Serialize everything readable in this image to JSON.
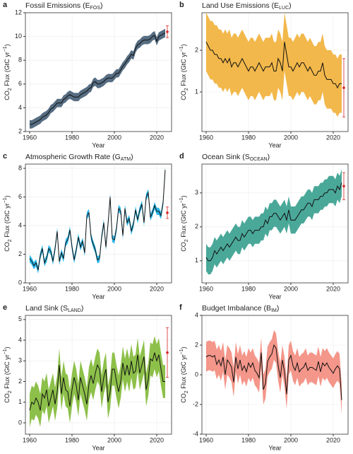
{
  "chart_data": [
    {
      "type": "line",
      "panel_label": "a",
      "title_parts": [
        "Fossil Emissions (E",
        "FOS",
        ")"
      ],
      "xlabel": "Year",
      "ylabel_parts": [
        "CO",
        "2",
        " Flux (GtC yr",
        "−1",
        ")"
      ],
      "xlim": [
        1958,
        2027
      ],
      "xticks": [
        1960,
        1980,
        2000,
        2020
      ],
      "ylim": [
        2,
        12
      ],
      "yticks": [
        2,
        4,
        6,
        8,
        10,
        12
      ],
      "x": [
        1960,
        1961,
        1962,
        1963,
        1964,
        1965,
        1966,
        1967,
        1968,
        1969,
        1970,
        1971,
        1972,
        1973,
        1974,
        1975,
        1976,
        1977,
        1978,
        1979,
        1980,
        1981,
        1982,
        1983,
        1984,
        1985,
        1986,
        1987,
        1988,
        1989,
        1990,
        1991,
        1992,
        1993,
        1994,
        1995,
        1996,
        1997,
        1998,
        1999,
        2000,
        2001,
        2002,
        2003,
        2004,
        2005,
        2006,
        2007,
        2008,
        2009,
        2010,
        2011,
        2012,
        2013,
        2014,
        2015,
        2016,
        2017,
        2018,
        2019,
        2020,
        2021,
        2022,
        2023,
        2024
      ],
      "series": [
        {
          "color": "#566d82",
          "line_color": "#111111",
          "uncertainty": 0.35,
          "values": [
            2.6,
            2.6,
            2.7,
            2.8,
            2.9,
            3.0,
            3.2,
            3.3,
            3.4,
            3.6,
            3.9,
            4.0,
            4.2,
            4.4,
            4.4,
            4.4,
            4.7,
            4.8,
            5.0,
            5.1,
            5.0,
            4.9,
            4.9,
            4.9,
            5.1,
            5.2,
            5.3,
            5.4,
            5.6,
            5.7,
            6.1,
            6.2,
            6.0,
            6.0,
            6.1,
            6.2,
            6.4,
            6.5,
            6.5,
            6.5,
            6.7,
            6.9,
            6.9,
            7.2,
            7.5,
            7.7,
            8.0,
            8.2,
            8.5,
            8.4,
            9.0,
            9.3,
            9.4,
            9.6,
            9.7,
            9.7,
            9.7,
            9.8,
            10.0,
            10.1,
            9.6,
            10.0,
            10.1,
            10.2,
            10.3
          ]
        }
      ],
      "estimate": {
        "x": 2025,
        "value": 10.4,
        "error": 0.5,
        "color": "#d62728"
      }
    },
    {
      "type": "line",
      "panel_label": "b",
      "title_parts": [
        "Land Use Emissions (E",
        "LUC",
        ")"
      ],
      "xlabel": "Year",
      "ylabel_parts": [
        "CO",
        "2",
        " Flux (GtC yr",
        "−1",
        ")"
      ],
      "xlim": [
        1958,
        2027
      ],
      "xticks": [
        1960,
        1980,
        2000,
        2020
      ],
      "ylim": [
        0.05,
        2.9
      ],
      "yticks": [
        1,
        2
      ],
      "x": [
        1960,
        1961,
        1962,
        1963,
        1964,
        1965,
        1966,
        1967,
        1968,
        1969,
        1970,
        1971,
        1972,
        1973,
        1974,
        1975,
        1976,
        1977,
        1978,
        1979,
        1980,
        1981,
        1982,
        1983,
        1984,
        1985,
        1986,
        1987,
        1988,
        1989,
        1990,
        1991,
        1992,
        1993,
        1994,
        1995,
        1996,
        1997,
        1998,
        1999,
        2000,
        2001,
        2002,
        2003,
        2004,
        2005,
        2006,
        2007,
        2008,
        2009,
        2010,
        2011,
        2012,
        2013,
        2014,
        2015,
        2016,
        2017,
        2018,
        2019,
        2020,
        2021,
        2022,
        2023,
        2024
      ],
      "series": [
        {
          "color": "#f2b84b",
          "line_color": "#111111",
          "uncertainty": 0.7,
          "values": [
            2.2,
            2.1,
            2.0,
            2.0,
            1.9,
            1.9,
            1.8,
            1.8,
            1.7,
            1.8,
            1.7,
            1.8,
            1.6,
            1.7,
            1.7,
            1.6,
            1.7,
            1.8,
            1.7,
            1.6,
            1.5,
            1.6,
            1.6,
            1.5,
            1.6,
            1.7,
            1.6,
            1.5,
            1.6,
            1.6,
            1.6,
            1.7,
            1.5,
            1.5,
            1.8,
            1.7,
            1.5,
            2.2,
            1.9,
            1.6,
            1.6,
            1.5,
            1.6,
            1.7,
            1.6,
            1.7,
            1.7,
            1.6,
            1.5,
            1.6,
            1.5,
            1.4,
            1.4,
            1.5,
            1.5,
            1.7,
            1.4,
            1.3,
            1.3,
            1.3,
            1.2,
            1.2,
            1.1,
            1.2,
            1.2
          ]
        }
      ],
      "estimate": {
        "x": 2025,
        "value": 1.1,
        "error": 0.7,
        "color": "#d62728"
      }
    },
    {
      "type": "line",
      "panel_label": "c",
      "title_parts": [
        "Atmospheric Growth Rate (G",
        "ATM",
        ")"
      ],
      "xlabel": "Year",
      "ylabel_parts": [
        "CO",
        "2",
        " Flux (GtC yr",
        "−1",
        ")"
      ],
      "xlim": [
        1958,
        2027
      ],
      "xticks": [
        1960,
        1980,
        2000,
        2020
      ],
      "ylim": [
        0,
        8.3
      ],
      "yticks": [
        0,
        2,
        4,
        6,
        8
      ],
      "x": [
        1960,
        1961,
        1962,
        1963,
        1964,
        1965,
        1966,
        1967,
        1968,
        1969,
        1970,
        1971,
        1972,
        1973,
        1974,
        1975,
        1976,
        1977,
        1978,
        1979,
        1980,
        1981,
        1982,
        1983,
        1984,
        1985,
        1986,
        1987,
        1988,
        1989,
        1990,
        1991,
        1992,
        1993,
        1994,
        1995,
        1996,
        1997,
        1998,
        1999,
        2000,
        2001,
        2002,
        2003,
        2004,
        2005,
        2006,
        2007,
        2008,
        2009,
        2010,
        2011,
        2012,
        2013,
        2014,
        2015,
        2016,
        2017,
        2018,
        2019,
        2020,
        2021,
        2022,
        2023,
        2024
      ],
      "series": [
        {
          "color": "#29b6e8",
          "line_color": "#111111",
          "uncertainty": 0.25,
          "values": [
            1.7,
            1.5,
            1.2,
            1.4,
            0.9,
            1.9,
            2.4,
            1.4,
            1.7,
            2.4,
            2.2,
            1.5,
            2.4,
            3.6,
            1.5,
            2.1,
            1.7,
            2.8,
            3.0,
            3.7,
            2.5,
            1.6,
            2.3,
            3.2,
            2.5,
            2.9,
            2.1,
            4.7,
            4.9,
            3.2,
            2.7,
            2.3,
            1.6,
            1.7,
            3.2,
            4.2,
            2.5,
            4.1,
            6.0,
            3.1,
            3.0,
            3.8,
            5.2,
            5.0,
            3.3,
            5.2,
            4.2,
            4.5,
            3.6,
            4.1,
            5.1,
            4.4,
            5.1,
            5.5,
            4.2,
            6.0,
            6.3,
            4.6,
            4.9,
            5.4,
            5.0,
            5.0,
            4.7,
            5.6,
            7.9
          ]
        }
      ],
      "estimate": {
        "x": 2025,
        "value": 4.9,
        "error": 0.4,
        "color": "#d62728"
      }
    },
    {
      "type": "line",
      "panel_label": "d",
      "title_parts": [
        "Ocean Sink (S",
        "OCEAN",
        ")"
      ],
      "xlabel": "Year",
      "ylabel_parts": [
        "CO",
        "2",
        " Flux (GtC yr",
        "−1",
        ")"
      ],
      "xlim": [
        1958,
        2027
      ],
      "xticks": [
        1960,
        1980,
        2000,
        2020
      ],
      "ylim": [
        0.35,
        3.85
      ],
      "yticks": [
        1,
        2,
        3
      ],
      "x": [
        1960,
        1961,
        1962,
        1963,
        1964,
        1965,
        1966,
        1967,
        1968,
        1969,
        1970,
        1971,
        1972,
        1973,
        1974,
        1975,
        1976,
        1977,
        1978,
        1979,
        1980,
        1981,
        1982,
        1983,
        1984,
        1985,
        1986,
        1987,
        1988,
        1989,
        1990,
        1991,
        1992,
        1993,
        1994,
        1995,
        1996,
        1997,
        1998,
        1999,
        2000,
        2001,
        2002,
        2003,
        2004,
        2005,
        2006,
        2007,
        2008,
        2009,
        2010,
        2011,
        2012,
        2013,
        2014,
        2015,
        2016,
        2017,
        2018,
        2019,
        2020,
        2021,
        2022,
        2023,
        2024
      ],
      "series": [
        {
          "color": "#4aa899",
          "line_color": "#111111",
          "uncertainty": 0.4,
          "values": [
            1.1,
            1.0,
            1.0,
            1.1,
            1.3,
            1.2,
            1.3,
            1.4,
            1.3,
            1.4,
            1.5,
            1.4,
            1.5,
            1.6,
            1.7,
            1.6,
            1.6,
            1.8,
            1.7,
            1.8,
            1.9,
            1.9,
            1.8,
            1.9,
            1.9,
            1.9,
            2.0,
            2.0,
            2.2,
            2.1,
            2.3,
            2.3,
            2.4,
            2.4,
            2.3,
            2.2,
            2.3,
            2.4,
            2.2,
            2.5,
            2.2,
            2.2,
            2.2,
            2.3,
            2.4,
            2.5,
            2.5,
            2.6,
            2.7,
            2.7,
            2.6,
            2.8,
            2.8,
            2.8,
            2.9,
            2.9,
            3.0,
            3.0,
            3.1,
            3.1,
            3.1,
            3.0,
            3.2,
            3.1,
            3.3
          ]
        }
      ],
      "estimate": {
        "x": 2025,
        "value": 3.2,
        "error": 0.4,
        "color": "#d62728"
      }
    },
    {
      "type": "line",
      "panel_label": "e",
      "title_parts": [
        "Land Sink (S",
        "LAND",
        ")"
      ],
      "xlabel": "Year",
      "ylabel_parts": [
        "CO",
        "2",
        " Flux (GtC yr",
        "−1",
        ")"
      ],
      "xlim": [
        1958,
        2027
      ],
      "xticks": [
        1960,
        1980,
        2000,
        2020
      ],
      "ylim": [
        -0.55,
        5.2
      ],
      "yticks": [
        0,
        1,
        2,
        3,
        4,
        5
      ],
      "x": [
        1960,
        1961,
        1962,
        1963,
        1964,
        1965,
        1966,
        1967,
        1968,
        1969,
        1970,
        1971,
        1972,
        1973,
        1974,
        1975,
        1976,
        1977,
        1978,
        1979,
        1980,
        1981,
        1982,
        1983,
        1984,
        1985,
        1986,
        1987,
        1988,
        1989,
        1990,
        1991,
        1992,
        1993,
        1994,
        1995,
        1996,
        1997,
        1998,
        1999,
        2000,
        2001,
        2002,
        2003,
        2004,
        2005,
        2006,
        2007,
        2008,
        2009,
        2010,
        2011,
        2012,
        2013,
        2014,
        2015,
        2016,
        2017,
        2018,
        2019,
        2020,
        2021,
        2022,
        2023,
        2024
      ],
      "series": [
        {
          "color": "#8dc04a",
          "line_color": "#111111",
          "uncertainty": 0.8,
          "values": [
            0.6,
            1.0,
            0.9,
            1.2,
            1.0,
            0.6,
            1.4,
            1.2,
            1.6,
            0.8,
            1.2,
            1.6,
            0.9,
            1.5,
            2.8,
            1.4,
            2.2,
            1.6,
            1.5,
            0.8,
            1.6,
            2.2,
            1.8,
            1.1,
            2.2,
            1.8,
            1.4,
            0.9,
            1.9,
            2.3,
            1.9,
            2.4,
            2.8,
            2.6,
            1.5,
            2.2,
            2.6,
            1.0,
            1.5,
            2.6,
            2.6,
            2.0,
            1.5,
            2.0,
            2.9,
            2.3,
            2.8,
            2.3,
            3.0,
            2.4,
            2.5,
            3.3,
            2.4,
            2.8,
            3.2,
            1.6,
            2.1,
            3.1,
            3.0,
            3.4,
            3.0,
            3.3,
            2.6,
            2.0,
            2.0
          ]
        }
      ],
      "estimate": {
        "x": 2025,
        "value": 3.4,
        "error": 1.2,
        "color": "#d62728"
      }
    },
    {
      "type": "line",
      "panel_label": "f",
      "title_parts": [
        "Budget Imbalance (B",
        "IM",
        ")"
      ],
      "xlabel": "Year",
      "ylabel_parts": [
        "CO",
        "2",
        " Flux (GtC yr",
        "−1",
        ")"
      ],
      "xlim": [
        1958,
        2027
      ],
      "xticks": [
        1960,
        1980,
        2000,
        2020
      ],
      "ylim": [
        -4,
        4
      ],
      "yticks": [
        -4,
        -2,
        0,
        2,
        4
      ],
      "x": [
        1960,
        1961,
        1962,
        1963,
        1964,
        1965,
        1966,
        1967,
        1968,
        1969,
        1970,
        1971,
        1972,
        1973,
        1974,
        1975,
        1976,
        1977,
        1978,
        1979,
        1980,
        1981,
        1982,
        1983,
        1984,
        1985,
        1986,
        1987,
        1988,
        1989,
        1990,
        1991,
        1992,
        1993,
        1994,
        1995,
        1996,
        1997,
        1998,
        1999,
        2000,
        2001,
        2002,
        2003,
        2004,
        2005,
        2006,
        2007,
        2008,
        2009,
        2010,
        2011,
        2012,
        2013,
        2014,
        2015,
        2016,
        2017,
        2018,
        2019,
        2020,
        2021,
        2022,
        2023,
        2024
      ],
      "series": [
        {
          "color": "#f4968a",
          "line_color": "#111111",
          "uncertainty": 1.0,
          "values": [
            1.2,
            1.3,
            1.3,
            1.2,
            1.3,
            0.7,
            1.0,
            0.6,
            1.2,
            0.0,
            1.0,
            0.8,
            0.5,
            -0.5,
            1.2,
            0.4,
            1.0,
            0.3,
            0.6,
            0.2,
            0.8,
            0.5,
            0.8,
            0.3,
            0.1,
            -0.2,
            1.5,
            -1.0,
            -0.6,
            0.9,
            1.2,
            1.4,
            2.0,
            1.8,
            0.6,
            -0.2,
            1.0,
            0.2,
            -1.3,
            1.0,
            1.3,
            0.6,
            0.3,
            0.8,
            0.2,
            0.4,
            0.5,
            0.8,
            0.3,
            0.5,
            0.5,
            0.4,
            0.3,
            0.9,
            0.2,
            0.8,
            0.6,
            0.8,
            0.5,
            0.3,
            0.1,
            0.4,
            0.6,
            0.4,
            -1.7
          ]
        }
      ]
    }
  ]
}
